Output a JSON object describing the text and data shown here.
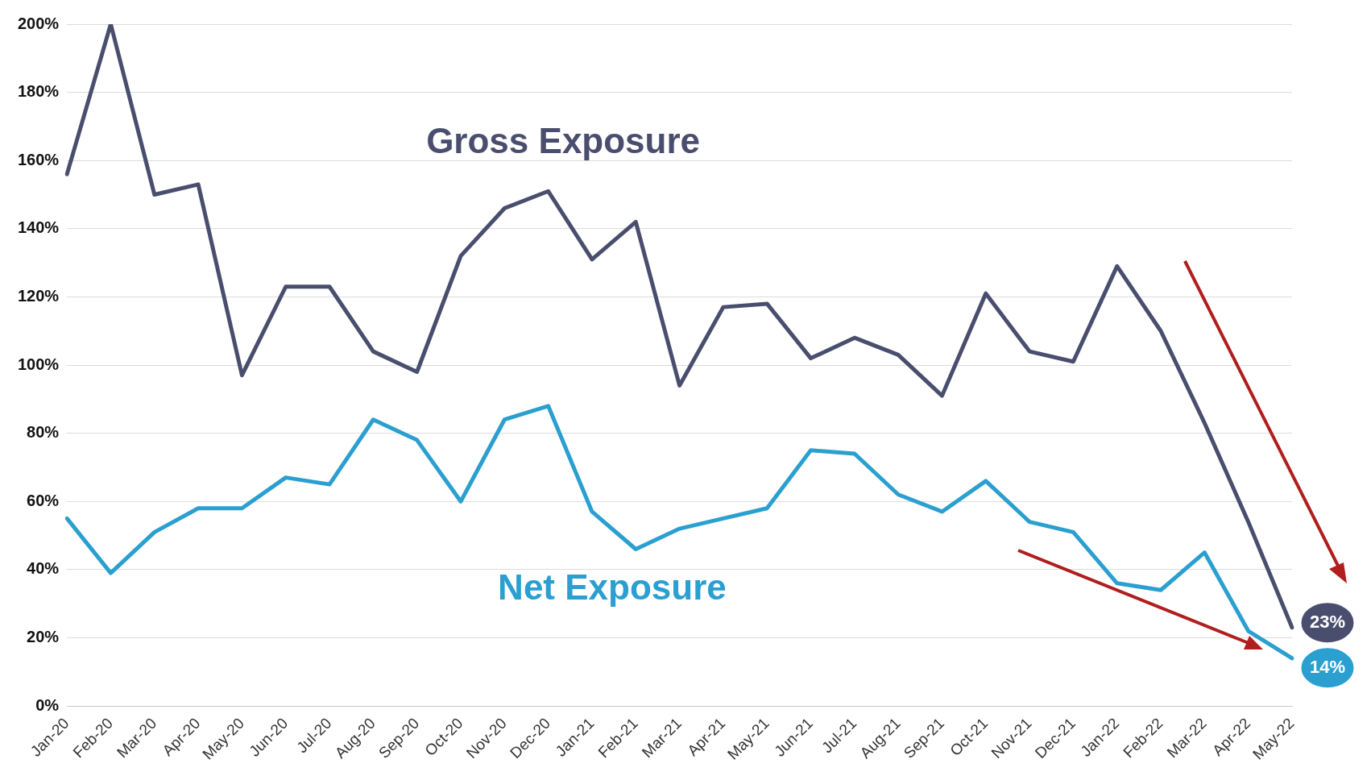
{
  "chart_data": {
    "type": "line",
    "categories": [
      "Jan-20",
      "Feb-20",
      "Mar-20",
      "Apr-20",
      "May-20",
      "Jun-20",
      "Jul-20",
      "Aug-20",
      "Sep-20",
      "Oct-20",
      "Nov-20",
      "Dec-20",
      "Jan-21",
      "Feb-21",
      "Mar-21",
      "Apr-21",
      "May-21",
      "Jun-21",
      "Jul-21",
      "Aug-21",
      "Sep-21",
      "Oct-21",
      "Nov-21",
      "Dec-21",
      "Jan-22",
      "Feb-22",
      "Mar-22",
      "Apr-22",
      "May-22"
    ],
    "series": [
      {
        "name": "Gross Exposure",
        "color": "#4a4e6e",
        "values": [
          156,
          200,
          150,
          153,
          97,
          123,
          123,
          104,
          98,
          132,
          146,
          151,
          131,
          142,
          94,
          117,
          118,
          102,
          108,
          103,
          91,
          121,
          104,
          101,
          129,
          110,
          83,
          54,
          23
        ],
        "value_labels": [
          null,
          null,
          null,
          null,
          null,
          null,
          null,
          null,
          null,
          null,
          null,
          null,
          null,
          null,
          null,
          null,
          null,
          null,
          null,
          null,
          null,
          null,
          null,
          null,
          null,
          null,
          null,
          null,
          "23%"
        ]
      },
      {
        "name": "Net Exposure",
        "color": "#2a9fd0",
        "values": [
          55,
          39,
          51,
          58,
          58,
          67,
          65,
          84,
          78,
          60,
          84,
          88,
          57,
          46,
          52,
          55,
          58,
          75,
          74,
          62,
          57,
          66,
          54,
          51,
          36,
          34,
          45,
          22,
          14
        ],
        "value_labels": [
          null,
          null,
          null,
          null,
          null,
          null,
          null,
          null,
          null,
          null,
          null,
          null,
          null,
          null,
          null,
          null,
          null,
          null,
          null,
          null,
          null,
          null,
          null,
          null,
          null,
          null,
          null,
          null,
          "14%"
        ]
      }
    ],
    "ylim": [
      0,
      200
    ],
    "yticks": [
      {
        "value": 0,
        "label": "0%"
      },
      {
        "value": 20,
        "label": "20%"
      },
      {
        "value": 40,
        "label": "40%"
      },
      {
        "value": 60,
        "label": "60%"
      },
      {
        "value": 80,
        "label": "80%"
      },
      {
        "value": 100,
        "label": "100%"
      },
      {
        "value": 120,
        "label": "120%"
      },
      {
        "value": 140,
        "label": "140%"
      },
      {
        "value": 160,
        "label": "160%"
      },
      {
        "value": 180,
        "label": "180%"
      },
      {
        "value": 200,
        "label": "200%"
      }
    ],
    "grid": "y",
    "legend": false,
    "marker": "none",
    "line_style": "solid"
  }
}
